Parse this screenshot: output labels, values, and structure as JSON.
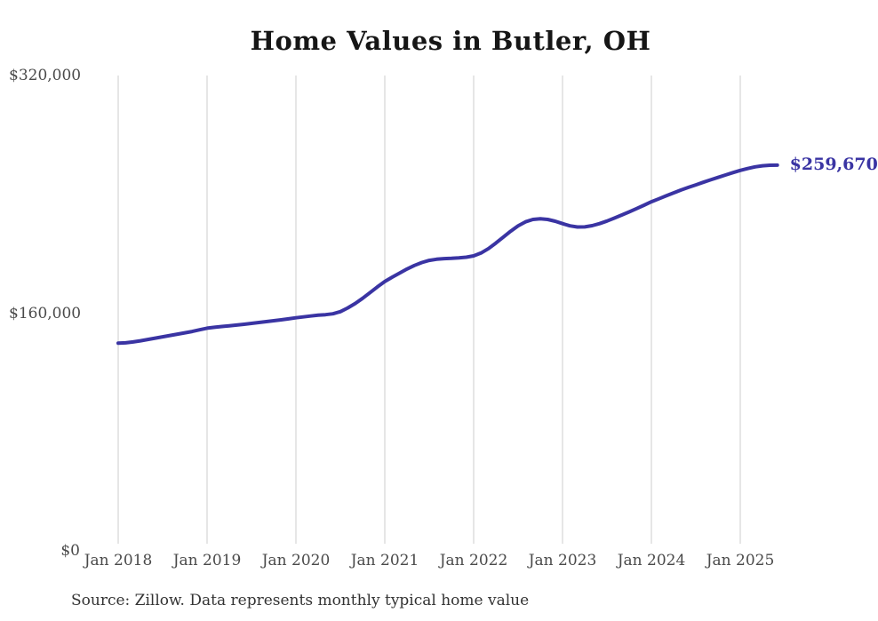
{
  "chart_data": {
    "type": "line",
    "title": "Home Values in Butler, OH",
    "source_note": "Source: Zillow. Data represents monthly typical home value",
    "end_label": "$259,670",
    "final_value": 259670,
    "x_tick_labels": [
      "Jan 2018",
      "Jan 2019",
      "Jan 2020",
      "Jan 2021",
      "Jan 2022",
      "Jan 2023",
      "Jan 2024",
      "Jan 2025"
    ],
    "y_ticks": [
      {
        "label": "$320,000",
        "value": 320000
      },
      {
        "label": "$160,000",
        "value": 160000
      },
      {
        "label": "$0",
        "value": 0
      }
    ],
    "ylim": [
      0,
      320000
    ],
    "grid": "vertical-only",
    "legend": "none",
    "series": [
      {
        "name": "Monthly typical home value",
        "start_month": "2018-01",
        "frequency": "monthly",
        "values": [
          139800,
          140000,
          140600,
          141400,
          142300,
          143200,
          144100,
          145000,
          145900,
          146800,
          147700,
          148800,
          149900,
          150500,
          151000,
          151500,
          152000,
          152500,
          153100,
          153700,
          154300,
          154900,
          155500,
          156200,
          156900,
          157500,
          158100,
          158600,
          159000,
          159600,
          161000,
          163500,
          166500,
          170000,
          173800,
          177700,
          181300,
          184200,
          187000,
          189700,
          192100,
          194100,
          195500,
          196300,
          196700,
          196900,
          197200,
          197700,
          198600,
          200500,
          203500,
          207200,
          211200,
          215200,
          218800,
          221500,
          223100,
          223600,
          223100,
          221900,
          220300,
          218800,
          218000,
          218100,
          218900,
          220300,
          222000,
          224000,
          226100,
          228200,
          230400,
          232700,
          235000,
          237000,
          239000,
          241000,
          242900,
          244700,
          246400,
          248100,
          249800,
          251400,
          253000,
          254600,
          256100,
          257400,
          258500,
          259200,
          259600,
          259670
        ]
      }
    ],
    "colors": {
      "line": "#3a34a3",
      "end_label": "#3a34a3",
      "grid": "#cccccc",
      "axis_text": "#4a4a4a",
      "title_text": "#161616",
      "source_text": "#333333",
      "background": "#ffffff"
    }
  }
}
